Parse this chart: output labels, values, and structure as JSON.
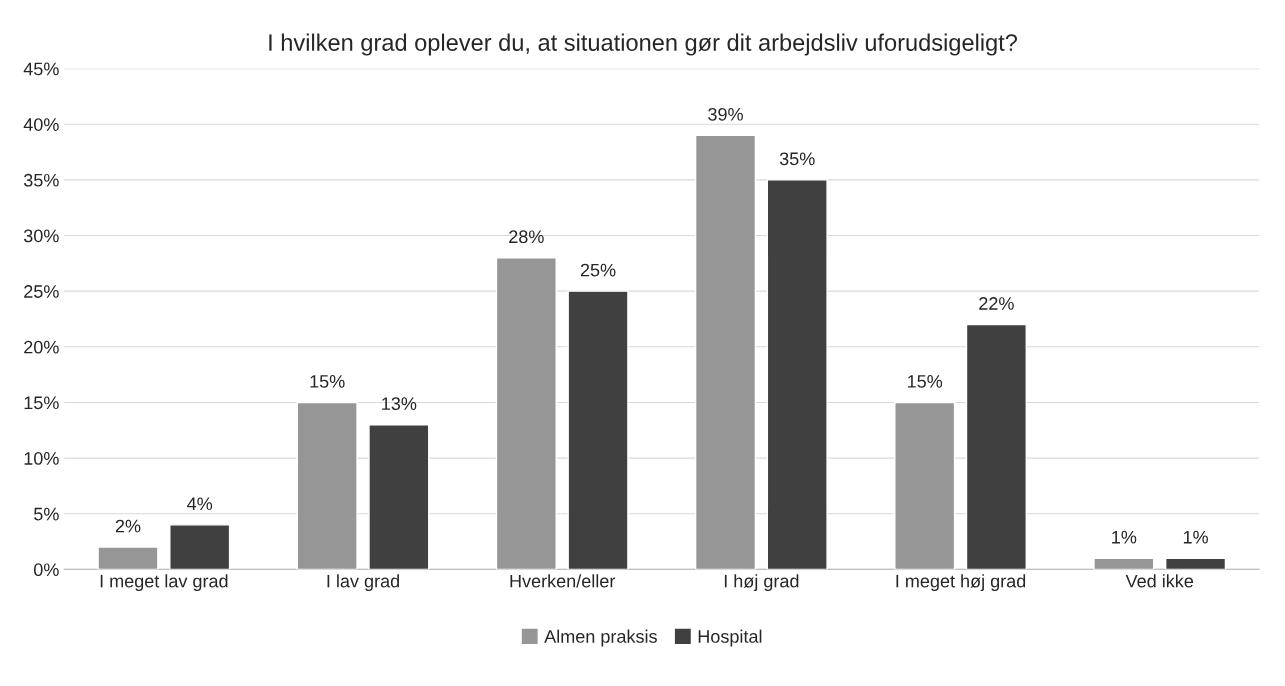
{
  "chart_data": {
    "type": "bar",
    "title": "I hvilken grad oplever du, at situationen gør dit arbejdsliv uforudsigeligt?",
    "categories": [
      "I meget lav grad",
      "I lav grad",
      "Hverken/eller",
      "I høj grad",
      "I meget høj grad",
      "Ved ikke"
    ],
    "series": [
      {
        "name": "Almen praksis",
        "color": "#969696",
        "values": [
          2,
          15,
          28,
          39,
          15,
          1
        ],
        "value_labels": [
          "2%",
          "15%",
          "28%",
          "39%",
          "15%",
          "1%"
        ]
      },
      {
        "name": "Hospital",
        "color": "#404040",
        "values": [
          4,
          13,
          25,
          35,
          22,
          1
        ],
        "value_labels": [
          "4%",
          "13%",
          "25%",
          "35%",
          "22%",
          "1%"
        ]
      }
    ],
    "ylim": [
      0,
      45
    ],
    "yticks": [
      {
        "value": 0,
        "label": "0%"
      },
      {
        "value": 5,
        "label": "5%"
      },
      {
        "value": 10,
        "label": "10%"
      },
      {
        "value": 15,
        "label": "15%"
      },
      {
        "value": 20,
        "label": "20%"
      },
      {
        "value": 25,
        "label": "25%"
      },
      {
        "value": 30,
        "label": "30%"
      },
      {
        "value": 35,
        "label": "35%"
      },
      {
        "value": 40,
        "label": "40%"
      },
      {
        "value": 45,
        "label": "45%"
      }
    ],
    "grid": "y",
    "legend": "bottom"
  }
}
